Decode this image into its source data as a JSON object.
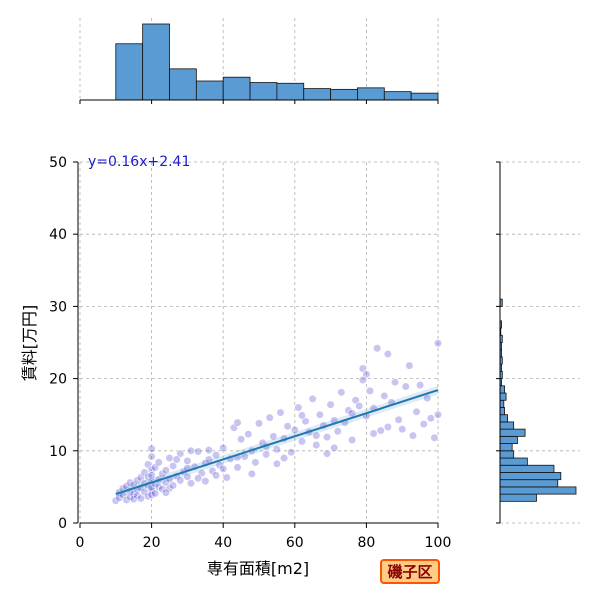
{
  "chart_data": {
    "type": "scatter",
    "xlabel": "専有面積[m2]",
    "ylabel": "賃料[万円]",
    "xlim": [
      0,
      100
    ],
    "ylim": [
      0,
      50
    ],
    "x_ticks": [
      "0",
      "20",
      "40",
      "60",
      "80",
      "100"
    ],
    "y_ticks": [
      "0",
      "10",
      "20",
      "30",
      "40",
      "50"
    ],
    "grid": true,
    "grid_style": "dashed",
    "regression": {
      "label": "y=0.16x+2.41",
      "slope": 0.16,
      "intercept": 2.41,
      "x_range": [
        10,
        100
      ],
      "color": "#1f77b4"
    },
    "point_color": "#3b2fc9",
    "histogram_color": "#5a9bd4",
    "x_histogram": {
      "bin_edges": [
        10,
        17.5,
        25,
        32.5,
        40,
        47.5,
        55,
        62.5,
        70,
        77.5,
        85,
        92.5,
        100
      ],
      "heights": [
        0.74,
        1.0,
        0.41,
        0.25,
        0.3,
        0.23,
        0.22,
        0.15,
        0.14,
        0.16,
        0.11,
        0.09
      ]
    },
    "y_histogram": {
      "bin_edges": [
        3,
        4,
        5,
        6,
        7,
        8,
        9,
        10,
        11,
        12,
        13,
        14,
        15,
        16,
        17,
        18,
        19,
        20,
        21,
        22,
        23,
        24,
        25,
        26,
        27,
        28,
        29,
        30,
        31
      ],
      "heights": [
        0.48,
        1.0,
        0.76,
        0.8,
        0.71,
        0.36,
        0.18,
        0.16,
        0.23,
        0.33,
        0.18,
        0.1,
        0.06,
        0.05,
        0.08,
        0.06,
        0.02,
        0.03,
        0.02,
        0.03,
        0.02,
        0.02,
        0.03,
        0.01,
        0.02,
        0.0,
        0.0,
        0.03
      ]
    },
    "points": [
      [
        10,
        3.1
      ],
      [
        11,
        4.2
      ],
      [
        11,
        3.5
      ],
      [
        12,
        4.8
      ],
      [
        12,
        3.9
      ],
      [
        13,
        5.1
      ],
      [
        13,
        3.2
      ],
      [
        14,
        4.4
      ],
      [
        14,
        5.6
      ],
      [
        14,
        3.6
      ],
      [
        15,
        4.0
      ],
      [
        15,
        5.3
      ],
      [
        15,
        3.3
      ],
      [
        16,
        4.6
      ],
      [
        16,
        5.9
      ],
      [
        16,
        3.8
      ],
      [
        17,
        4.9
      ],
      [
        17,
        6.3
      ],
      [
        17,
        3.4
      ],
      [
        18,
        5.5
      ],
      [
        18,
        4.3
      ],
      [
        18,
        7.0
      ],
      [
        19,
        5.2
      ],
      [
        19,
        6.4
      ],
      [
        19,
        3.7
      ],
      [
        19,
        8.1
      ],
      [
        20,
        4.5
      ],
      [
        20,
        5.8
      ],
      [
        20,
        7.4
      ],
      [
        20,
        3.9
      ],
      [
        20,
        9.2
      ],
      [
        20,
        10.3
      ],
      [
        20,
        6.6
      ],
      [
        20,
        4.9
      ],
      [
        21,
        5.4
      ],
      [
        21,
        7.7
      ],
      [
        21,
        4.1
      ],
      [
        22,
        6.0
      ],
      [
        22,
        8.4
      ],
      [
        22,
        5.0
      ],
      [
        23,
        6.8
      ],
      [
        23,
        4.7
      ],
      [
        24,
        7.3
      ],
      [
        24,
        5.6
      ],
      [
        25,
        9.0
      ],
      [
        25,
        6.1
      ],
      [
        25,
        4.8
      ],
      [
        26,
        7.9
      ],
      [
        26,
        5.2
      ],
      [
        27,
        6.5
      ],
      [
        28,
        9.6
      ],
      [
        28,
        5.9
      ],
      [
        29,
        7.1
      ],
      [
        30,
        6.4
      ],
      [
        30,
        8.6
      ],
      [
        31,
        5.5
      ],
      [
        32,
        7.8
      ],
      [
        33,
        9.9
      ],
      [
        34,
        6.9
      ],
      [
        35,
        8.3
      ],
      [
        35,
        5.8
      ],
      [
        36,
        10.1
      ],
      [
        37,
        7.2
      ],
      [
        38,
        6.6
      ],
      [
        38,
        9.4
      ],
      [
        39,
        8.0
      ],
      [
        40,
        7.5
      ],
      [
        40,
        10.4
      ],
      [
        41,
        6.3
      ],
      [
        42,
        8.9
      ],
      [
        43,
        13.2
      ],
      [
        44,
        7.7
      ],
      [
        45,
        11.6
      ],
      [
        46,
        9.2
      ],
      [
        47,
        12.3
      ],
      [
        48,
        10.0
      ],
      [
        49,
        8.4
      ],
      [
        50,
        13.8
      ],
      [
        51,
        11.1
      ],
      [
        52,
        9.5
      ],
      [
        53,
        14.6
      ],
      [
        54,
        12.0
      ],
      [
        55,
        10.2
      ],
      [
        56,
        15.3
      ],
      [
        57,
        11.7
      ],
      [
        58,
        13.4
      ],
      [
        59,
        9.8
      ],
      [
        60,
        12.9
      ],
      [
        61,
        16.0
      ],
      [
        62,
        11.3
      ],
      [
        63,
        14.1
      ],
      [
        64,
        12.6
      ],
      [
        65,
        17.2
      ],
      [
        66,
        10.8
      ],
      [
        67,
        15.0
      ],
      [
        68,
        13.5
      ],
      [
        69,
        11.9
      ],
      [
        70,
        16.4
      ],
      [
        71,
        14.2
      ],
      [
        72,
        12.7
      ],
      [
        73,
        18.1
      ],
      [
        74,
        13.9
      ],
      [
        75,
        15.6
      ],
      [
        76,
        11.5
      ],
      [
        77,
        17.0
      ],
      [
        78,
        16.2
      ],
      [
        79,
        21.4
      ],
      [
        80,
        14.8
      ],
      [
        80,
        20.6
      ],
      [
        81,
        18.3
      ],
      [
        82,
        15.9
      ],
      [
        83,
        24.2
      ],
      [
        84,
        12.8
      ],
      [
        85,
        17.6
      ],
      [
        86,
        23.4
      ],
      [
        87,
        16.7
      ],
      [
        88,
        19.5
      ],
      [
        89,
        14.3
      ],
      [
        90,
        13.0
      ],
      [
        91,
        18.9
      ],
      [
        92,
        21.8
      ],
      [
        93,
        12.1
      ],
      [
        94,
        15.4
      ],
      [
        95,
        19.1
      ],
      [
        96,
        13.7
      ],
      [
        97,
        17.3
      ],
      [
        98,
        14.5
      ],
      [
        99,
        11.8
      ],
      [
        100,
        24.9
      ],
      [
        100,
        15.0
      ],
      [
        30,
        7.6
      ],
      [
        33,
        6.2
      ],
      [
        36,
        8.8
      ],
      [
        44,
        9.1
      ],
      [
        48,
        6.8
      ],
      [
        52,
        10.6
      ],
      [
        57,
        9.0
      ],
      [
        62,
        14.9
      ],
      [
        66,
        12.1
      ],
      [
        71,
        10.4
      ],
      [
        76,
        15.2
      ],
      [
        79,
        19.8
      ],
      [
        82,
        12.4
      ],
      [
        86,
        13.3
      ],
      [
        44,
        13.9
      ],
      [
        55,
        8.2
      ],
      [
        69,
        9.6
      ],
      [
        24,
        4.2
      ],
      [
        27,
        8.8
      ],
      [
        31,
        10.0
      ]
    ]
  },
  "overlay": {
    "ward_label": "磯子区"
  }
}
